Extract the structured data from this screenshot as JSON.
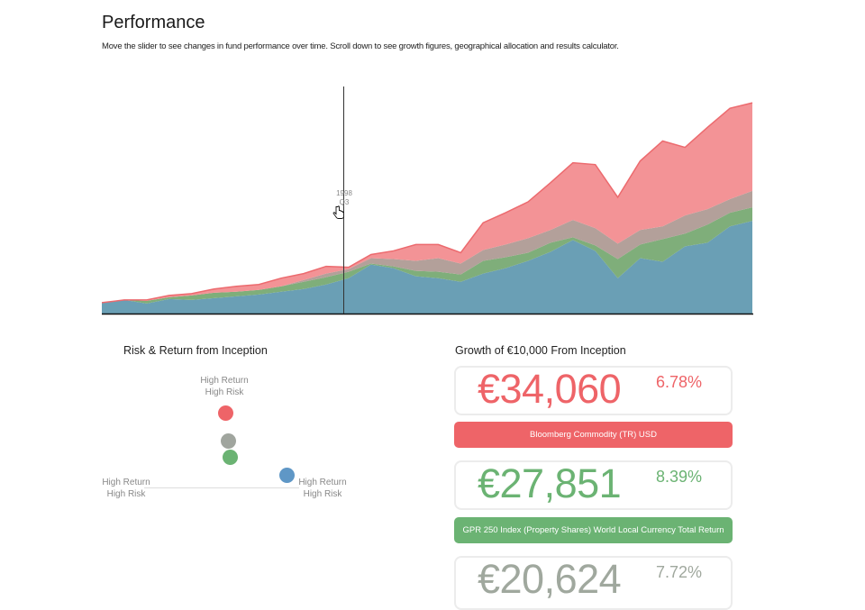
{
  "header": {
    "title": "Performance",
    "subtitle": "Move the slider to see changes in fund performance over time. Scroll down to see growth figures, geographical allocation and results calculator."
  },
  "slider": {
    "year": "1998",
    "quarter": "Q3",
    "icon": "hand-pointer-icon"
  },
  "chart_data": {
    "type": "area",
    "stacked": true,
    "ylim": [
      0,
      100
    ],
    "grid": false,
    "series": [
      {
        "color": "#6a9fb5",
        "values": [
          4.8,
          6,
          4.4,
          6.4,
          6,
          6.8,
          7.6,
          8.4,
          9.6,
          10.8,
          12.8,
          15.6,
          21.6,
          20,
          16.4,
          15.6,
          14,
          17.6,
          20,
          23.2,
          27.2,
          32.4,
          27.6,
          15.6,
          24.4,
          22.8,
          29.6,
          31.2,
          38.4,
          40.8
        ]
      },
      {
        "color": "#7fae7a",
        "values": [
          0,
          0,
          1.2,
          0.8,
          2,
          2.4,
          2,
          2,
          2.4,
          3.2,
          3.2,
          2.8,
          0.4,
          0.8,
          2.4,
          2.8,
          3.2,
          5.6,
          4.8,
          3.6,
          4,
          1.2,
          2.4,
          8.4,
          6,
          10,
          5.6,
          8,
          6,
          6
        ]
      },
      {
        "color": "#b3a09a",
        "values": [
          0,
          0,
          0,
          0,
          0,
          0,
          0,
          0,
          0,
          0.8,
          1.6,
          1.2,
          2.4,
          3.2,
          4.4,
          6,
          4.8,
          4.8,
          5.6,
          6.4,
          5.6,
          7.6,
          7.6,
          6.8,
          6.4,
          5.6,
          8,
          6.8,
          6,
          7.2
        ]
      },
      {
        "color": "#f39396",
        "stroke": "#ec6a6e",
        "values": [
          0,
          0,
          0.4,
          0.8,
          0.8,
          1.6,
          2.4,
          2.4,
          3.6,
          2.8,
          3.2,
          0.8,
          1.6,
          3.6,
          7.2,
          6,
          4.8,
          12,
          14,
          16,
          20.8,
          25.2,
          28,
          20.4,
          30.4,
          37.6,
          30,
          36,
          40,
          38.8
        ]
      }
    ]
  },
  "risk_return": {
    "title": "Risk & Return from Inception",
    "labels": {
      "top": [
        "High Return",
        "High Risk"
      ],
      "left": [
        "High Return",
        "High Risk"
      ],
      "right": [
        "High Return",
        "High Risk"
      ]
    },
    "dots": [
      {
        "color": "#ee6468"
      },
      {
        "color": "#a0a59e"
      },
      {
        "color": "#6bb373"
      },
      {
        "color": "#5f97c6"
      }
    ]
  },
  "growth": {
    "title": "Growth of €10,000 From Inception",
    "cards": [
      {
        "value": "€34,060",
        "pct": "6.78%",
        "color": "#ee6468",
        "name": "Bloomberg Commodity (TR) USD"
      },
      {
        "value": "€27,851",
        "pct": "8.39%",
        "color": "#6bb373",
        "name": "GPR 250 Index (Property Shares) World Local Currency Total Return"
      },
      {
        "value": "€20,624",
        "pct": "7.72%",
        "color": "#a0a89e"
      }
    ]
  }
}
